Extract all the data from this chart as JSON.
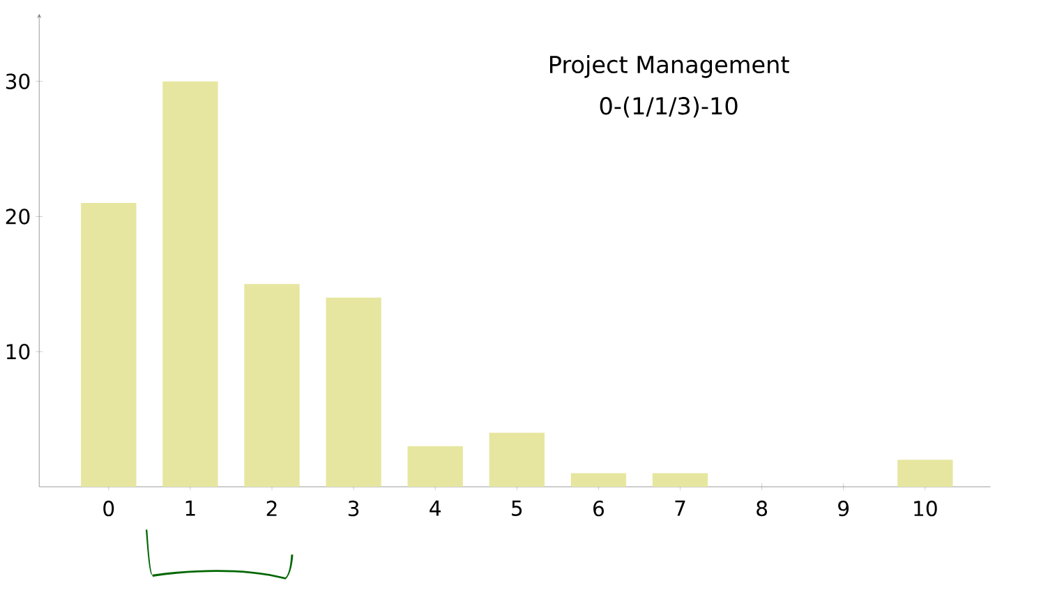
{
  "chart_data": {
    "type": "bar",
    "title": "Project Management",
    "subtitle": "0-(1/1/3)-10",
    "categories": [
      "0",
      "1",
      "2",
      "3",
      "4",
      "5",
      "6",
      "7",
      "8",
      "9",
      "10"
    ],
    "values": [
      21,
      30,
      15,
      14,
      3,
      4,
      1,
      1,
      0,
      0,
      2
    ],
    "color": "#e6e6a0",
    "ylim": [
      0,
      35
    ],
    "yticks": [
      10,
      20,
      30
    ]
  }
}
